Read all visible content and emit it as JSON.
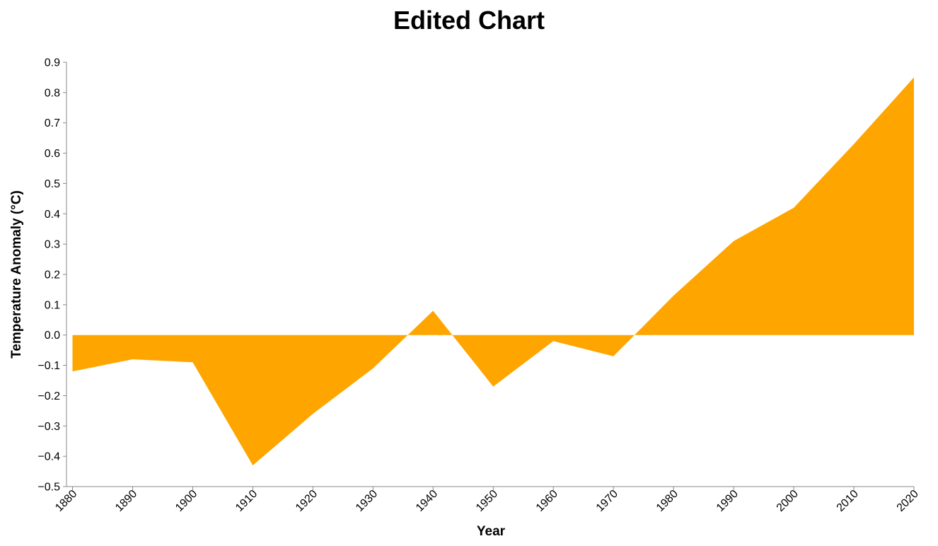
{
  "chart_data": {
    "type": "area",
    "title": "Edited Chart",
    "xlabel": "Year",
    "ylabel": "Temperature Anomaly (°C)",
    "x": [
      1880,
      1890,
      1900,
      1910,
      1920,
      1930,
      1940,
      1950,
      1960,
      1970,
      1980,
      1990,
      2000,
      2010,
      2020
    ],
    "series": [
      {
        "values": [
          -0.12,
          -0.08,
          -0.09,
          -0.43,
          -0.26,
          -0.11,
          0.08,
          -0.17,
          -0.02,
          -0.07,
          0.13,
          0.31,
          0.42,
          0.63,
          0.85
        ]
      }
    ],
    "baseline": 0,
    "xlim": [
      1879,
      2020
    ],
    "ylim": [
      -0.5,
      0.9
    ],
    "x_ticks": [
      "1880",
      "1890",
      "1900",
      "1910",
      "1920",
      "1930",
      "1940",
      "1950",
      "1960",
      "1970",
      "1980",
      "1990",
      "2000",
      "2010",
      "2020"
    ],
    "y_ticks": [
      "−0.5",
      "−0.4",
      "−0.3",
      "−0.2",
      "−0.1",
      "0.0",
      "0.1",
      "0.2",
      "0.3",
      "0.4",
      "0.5",
      "0.6",
      "0.7",
      "0.8",
      "0.9"
    ],
    "grid": false,
    "legend": "none",
    "fill_color": "#FFA500",
    "axis_color": "#888888"
  }
}
